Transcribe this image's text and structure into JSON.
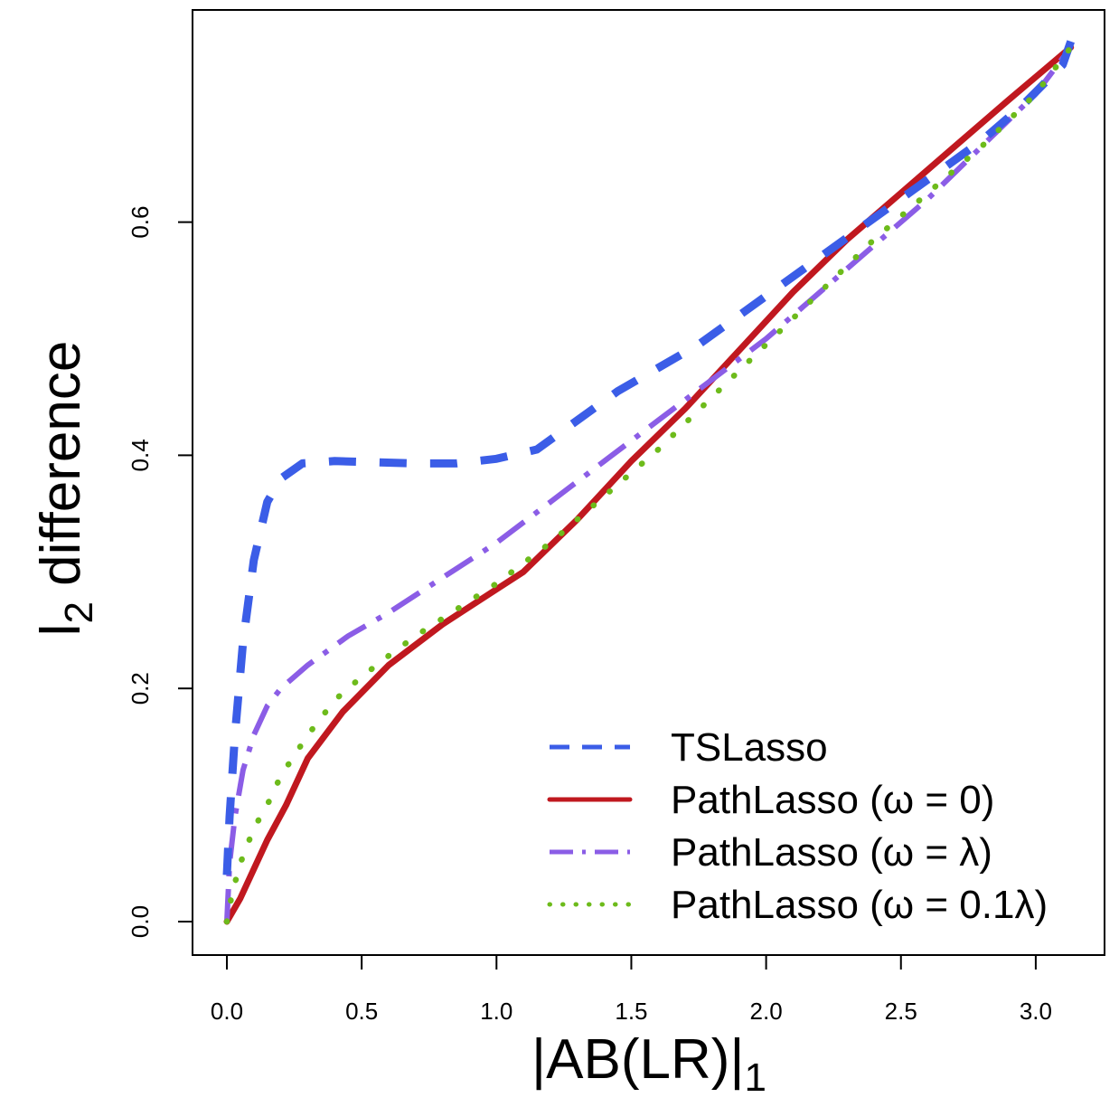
{
  "chart_data": {
    "type": "line",
    "xlabel": "|AB(LR)|",
    "xlabel_subscript": "1",
    "ylabel": "l",
    "ylabel_subscript": "2",
    "ylabel_rest": " difference",
    "xlim": [
      0.0,
      3.2
    ],
    "ylim": [
      0.0,
      0.78
    ],
    "x_ticks": [
      "0.0",
      "0.5",
      "1.0",
      "1.5",
      "2.0",
      "2.5",
      "3.0"
    ],
    "y_ticks": [
      "0.0",
      "0.2",
      "0.4",
      "0.6"
    ],
    "grid": false,
    "legend_position": "bottom-right",
    "series": [
      {
        "name": "TSLasso",
        "color": "#3b5de7",
        "style": "dashed",
        "x": [
          0.0,
          0.01,
          0.03,
          0.06,
          0.1,
          0.15,
          0.2,
          0.28,
          0.4,
          0.55,
          0.7,
          0.85,
          1.0,
          1.15,
          1.3,
          1.45,
          1.6,
          1.75,
          1.9,
          2.05,
          2.2,
          2.35,
          2.5,
          2.65,
          2.8,
          2.95,
          3.1,
          3.13
        ],
        "y": [
          0.04,
          0.09,
          0.16,
          0.24,
          0.31,
          0.36,
          0.38,
          0.393,
          0.395,
          0.394,
          0.393,
          0.393,
          0.397,
          0.405,
          0.43,
          0.455,
          0.475,
          0.495,
          0.52,
          0.545,
          0.57,
          0.595,
          0.62,
          0.645,
          0.67,
          0.7,
          0.735,
          0.755
        ]
      },
      {
        "name": "PathLasso (ω = 0)",
        "color": "#c0181f",
        "style": "solid",
        "x": [
          0.0,
          0.05,
          0.1,
          0.15,
          0.22,
          0.3,
          0.43,
          0.6,
          0.8,
          1.0,
          1.1,
          1.3,
          1.5,
          1.7,
          1.9,
          2.1,
          2.3,
          2.5,
          2.7,
          2.9,
          3.13
        ],
        "y": [
          0.0,
          0.02,
          0.045,
          0.07,
          0.1,
          0.14,
          0.18,
          0.22,
          0.255,
          0.285,
          0.3,
          0.345,
          0.395,
          0.44,
          0.49,
          0.54,
          0.585,
          0.625,
          0.665,
          0.705,
          0.75
        ]
      },
      {
        "name": "PathLasso (ω = λ)",
        "color": "#8b5de6",
        "style": "dashdot",
        "x": [
          0.0,
          0.01,
          0.03,
          0.06,
          0.1,
          0.15,
          0.2,
          0.3,
          0.45,
          0.6,
          0.8,
          1.0,
          1.2,
          1.4,
          1.6,
          1.8,
          2.0,
          2.2,
          2.4,
          2.6,
          2.8,
          3.0,
          3.13
        ],
        "y": [
          0.0,
          0.05,
          0.09,
          0.13,
          0.16,
          0.185,
          0.2,
          0.22,
          0.245,
          0.265,
          0.295,
          0.325,
          0.36,
          0.395,
          0.43,
          0.465,
          0.5,
          0.54,
          0.58,
          0.62,
          0.665,
          0.71,
          0.75
        ]
      },
      {
        "name": "PathLasso (ω = 0.1λ)",
        "color": "#6dbb1b",
        "style": "dotted",
        "x": [
          0.0,
          0.02,
          0.05,
          0.1,
          0.15,
          0.2,
          0.3,
          0.4,
          0.5,
          0.6,
          0.7,
          0.8,
          0.9,
          1.0,
          1.2,
          1.4,
          1.6,
          1.8,
          2.0,
          2.2,
          2.4,
          2.6,
          2.8,
          3.0,
          3.13
        ],
        "y": [
          0.0,
          0.025,
          0.05,
          0.08,
          0.1,
          0.125,
          0.16,
          0.19,
          0.21,
          0.228,
          0.245,
          0.26,
          0.275,
          0.29,
          0.325,
          0.365,
          0.405,
          0.45,
          0.495,
          0.54,
          0.585,
          0.625,
          0.665,
          0.71,
          0.75
        ]
      }
    ],
    "legend": [
      {
        "label": "TSLasso",
        "series_index": 0
      },
      {
        "label": "PathLasso (ω = 0)",
        "series_index": 1
      },
      {
        "label": "PathLasso (ω = λ)",
        "series_index": 2
      },
      {
        "label": "PathLasso (ω = 0.1λ)",
        "series_index": 3
      }
    ]
  }
}
